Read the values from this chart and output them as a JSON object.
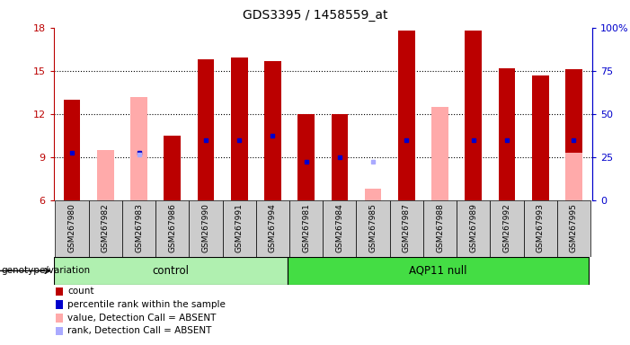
{
  "title": "GDS3395 / 1458559_at",
  "samples": [
    "GSM267980",
    "GSM267982",
    "GSM267983",
    "GSM267986",
    "GSM267990",
    "GSM267991",
    "GSM267994",
    "GSM267981",
    "GSM267984",
    "GSM267985",
    "GSM267987",
    "GSM267988",
    "GSM267989",
    "GSM267992",
    "GSM267993",
    "GSM267995"
  ],
  "groups": [
    "control",
    "control",
    "control",
    "control",
    "control",
    "control",
    "control",
    "AQP11 null",
    "AQP11 null",
    "AQP11 null",
    "AQP11 null",
    "AQP11 null",
    "AQP11 null",
    "AQP11 null",
    "AQP11 null",
    "AQP11 null"
  ],
  "red_bars": [
    13.0,
    null,
    null,
    10.5,
    15.8,
    15.9,
    15.7,
    12.0,
    12.0,
    null,
    17.8,
    null,
    17.8,
    15.2,
    14.7,
    15.1
  ],
  "pink_bars": [
    null,
    9.5,
    13.2,
    null,
    null,
    null,
    null,
    null,
    null,
    6.8,
    null,
    12.5,
    null,
    null,
    null,
    9.3
  ],
  "blue_dots": [
    9.3,
    null,
    9.3,
    null,
    10.2,
    10.2,
    10.5,
    8.7,
    9.0,
    null,
    10.2,
    null,
    10.2,
    10.2,
    null,
    10.2
  ],
  "lightblue_dots": [
    null,
    null,
    9.2,
    null,
    null,
    null,
    null,
    null,
    null,
    8.7,
    null,
    null,
    null,
    null,
    null,
    null
  ],
  "ylim": [
    6,
    18
  ],
  "yticks": [
    6,
    9,
    12,
    15,
    18
  ],
  "right_ytick_labels": [
    "0",
    "25",
    "50",
    "75",
    "100%"
  ],
  "right_ytick_positions": [
    6,
    9,
    12,
    15,
    18
  ],
  "control_count": 7,
  "aqp11_count": 9,
  "control_color": "#b0f0b0",
  "aqp11_color": "#44dd44",
  "bar_width": 0.5,
  "bg_color": "#cccccc",
  "plot_bg_color": "#ffffff",
  "red_color": "#bb0000",
  "pink_color": "#ffaaaa",
  "blue_color": "#0000cc",
  "lightblue_color": "#aaaaff",
  "legend_items": [
    {
      "color": "#bb0000",
      "label": "count"
    },
    {
      "color": "#0000cc",
      "label": "percentile rank within the sample"
    },
    {
      "color": "#ffaaaa",
      "label": "value, Detection Call = ABSENT"
    },
    {
      "color": "#aaaaff",
      "label": "rank, Detection Call = ABSENT"
    }
  ]
}
